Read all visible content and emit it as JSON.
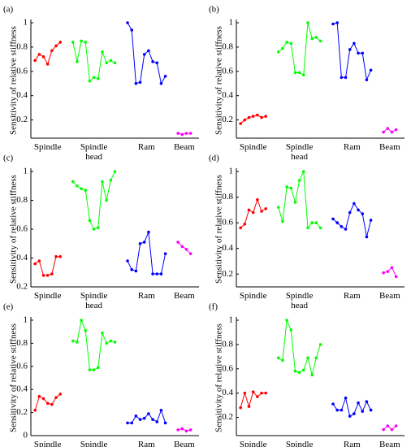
{
  "chart_data": [
    {
      "type": "line",
      "panel": "(a)",
      "ylabel": "Sensitivity of relative stiffness",
      "xlim": [
        0,
        40
      ],
      "ylim": [
        0.05,
        1
      ],
      "yticks": [
        0.2,
        0.4,
        0.6,
        0.8,
        1
      ],
      "series": [
        {
          "name": "Spindle",
          "color": "#ff0000",
          "x": [
            1,
            2,
            3,
            4,
            5,
            6,
            7
          ],
          "values": [
            0.69,
            0.74,
            0.72,
            0.66,
            0.77,
            0.81,
            0.84
          ]
        },
        {
          "name": "Spindle head",
          "color": "#00ff00",
          "x": [
            10,
            11,
            12,
            13,
            14,
            15,
            16,
            17,
            18,
            19,
            20
          ],
          "values": [
            0.84,
            0.68,
            0.85,
            0.84,
            0.52,
            0.55,
            0.54,
            0.76,
            0.67,
            0.69,
            0.67
          ]
        },
        {
          "name": "Ram",
          "color": "#0000ff",
          "x": [
            23,
            24,
            25,
            26,
            27,
            28,
            29,
            30,
            31,
            32
          ],
          "values": [
            1.0,
            0.94,
            0.5,
            0.51,
            0.74,
            0.77,
            0.68,
            0.67,
            0.5,
            0.56
          ]
        },
        {
          "name": "Beam",
          "color": "#ff00ff",
          "x": [
            35,
            36,
            37,
            38
          ],
          "values": [
            0.09,
            0.08,
            0.09,
            0.09
          ]
        }
      ]
    },
    {
      "type": "line",
      "panel": "(b)",
      "ylabel": "Sensitivity of relative stiffness",
      "xlim": [
        0,
        40
      ],
      "ylim": [
        0.05,
        1
      ],
      "yticks": [
        0.2,
        0.4,
        0.6,
        0.8,
        1
      ],
      "series": [
        {
          "name": "Spindle",
          "color": "#ff0000",
          "x": [
            1,
            2,
            3,
            4,
            5,
            6,
            7
          ],
          "values": [
            0.17,
            0.2,
            0.22,
            0.23,
            0.24,
            0.22,
            0.23
          ]
        },
        {
          "name": "Spindle head",
          "color": "#00ff00",
          "x": [
            10,
            11,
            12,
            13,
            14,
            15,
            16,
            17,
            18,
            19,
            20
          ],
          "values": [
            0.76,
            0.79,
            0.84,
            0.83,
            0.59,
            0.59,
            0.57,
            1.0,
            0.87,
            0.88,
            0.85
          ]
        },
        {
          "name": "Ram",
          "color": "#0000ff",
          "x": [
            23,
            24,
            25,
            26,
            27,
            28,
            29,
            30,
            31,
            32
          ],
          "values": [
            0.99,
            1.0,
            0.55,
            0.55,
            0.78,
            0.83,
            0.75,
            0.75,
            0.53,
            0.61
          ]
        },
        {
          "name": "Beam",
          "color": "#ff00ff",
          "x": [
            35,
            36,
            37,
            38
          ],
          "values": [
            0.1,
            0.13,
            0.1,
            0.12
          ]
        }
      ]
    },
    {
      "type": "line",
      "panel": "(c)",
      "ylabel": "Sensitivity of relative stiffness",
      "xlim": [
        0,
        40
      ],
      "ylim": [
        0.2,
        1
      ],
      "yticks": [
        0.2,
        0.4,
        0.6,
        0.8,
        1
      ],
      "series": [
        {
          "name": "Spindle",
          "color": "#ff0000",
          "x": [
            1,
            2,
            3,
            4,
            5,
            6,
            7
          ],
          "values": [
            0.36,
            0.38,
            0.28,
            0.28,
            0.29,
            0.41,
            0.41
          ]
        },
        {
          "name": "Spindle head",
          "color": "#00ff00",
          "x": [
            10,
            11,
            12,
            13,
            14,
            15,
            16,
            17,
            18,
            19,
            20
          ],
          "values": [
            0.93,
            0.9,
            0.88,
            0.87,
            0.66,
            0.6,
            0.61,
            0.93,
            0.8,
            0.94,
            1.0
          ]
        },
        {
          "name": "Ram",
          "color": "#0000ff",
          "x": [
            23,
            24,
            25,
            26,
            27,
            28,
            29,
            30,
            31,
            32
          ],
          "values": [
            0.38,
            0.32,
            0.31,
            0.5,
            0.51,
            0.58,
            0.29,
            0.29,
            0.29,
            0.43
          ]
        },
        {
          "name": "Beam",
          "color": "#ff00ff",
          "x": [
            35,
            36,
            37,
            38
          ],
          "values": [
            0.51,
            0.48,
            0.46,
            0.43
          ]
        }
      ]
    },
    {
      "type": "line",
      "panel": "(d)",
      "ylabel": "Sensitivity of relative stiffness",
      "xlim": [
        0,
        40
      ],
      "ylim": [
        0.1,
        1
      ],
      "yticks": [
        0.2,
        0.4,
        0.6,
        0.8,
        1
      ],
      "series": [
        {
          "name": "Spindle",
          "color": "#ff0000",
          "x": [
            1,
            2,
            3,
            4,
            5,
            6,
            7
          ],
          "values": [
            0.56,
            0.59,
            0.7,
            0.68,
            0.78,
            0.69,
            0.71
          ]
        },
        {
          "name": "Spindle head",
          "color": "#00ff00",
          "x": [
            10,
            11,
            12,
            13,
            14,
            15,
            16,
            17,
            18,
            19,
            20
          ],
          "values": [
            0.72,
            0.61,
            0.88,
            0.87,
            0.76,
            0.93,
            1.0,
            0.56,
            0.6,
            0.6,
            0.56
          ]
        },
        {
          "name": "Ram",
          "color": "#0000ff",
          "x": [
            23,
            24,
            25,
            26,
            27,
            28,
            29,
            30,
            31,
            32
          ],
          "values": [
            0.63,
            0.6,
            0.57,
            0.55,
            0.68,
            0.75,
            0.7,
            0.67,
            0.49,
            0.62
          ]
        },
        {
          "name": "Beam",
          "color": "#ff00ff",
          "x": [
            35,
            36,
            37,
            38
          ],
          "values": [
            0.21,
            0.22,
            0.25,
            0.18
          ]
        }
      ]
    },
    {
      "type": "line",
      "panel": "(e)",
      "ylabel": "Sensitivity of relative stiffness",
      "xlim": [
        0,
        40
      ],
      "ylim": [
        0,
        1
      ],
      "yticks": [
        0,
        0.2,
        0.4,
        0.6,
        0.8,
        1
      ],
      "series": [
        {
          "name": "Spindle",
          "color": "#ff0000",
          "x": [
            1,
            2,
            3,
            4,
            5,
            6,
            7
          ],
          "values": [
            0.22,
            0.34,
            0.32,
            0.28,
            0.27,
            0.33,
            0.36
          ]
        },
        {
          "name": "Spindle head",
          "color": "#00ff00",
          "x": [
            10,
            11,
            12,
            13,
            14,
            15,
            16,
            17,
            18,
            19,
            20
          ],
          "values": [
            0.82,
            0.81,
            1.0,
            0.91,
            0.57,
            0.57,
            0.59,
            0.89,
            0.8,
            0.82,
            0.81
          ]
        },
        {
          "name": "Ram",
          "color": "#0000ff",
          "x": [
            23,
            24,
            25,
            26,
            27,
            28,
            29,
            30,
            31,
            32
          ],
          "values": [
            0.11,
            0.11,
            0.17,
            0.14,
            0.15,
            0.19,
            0.14,
            0.12,
            0.22,
            0.11
          ]
        },
        {
          "name": "Beam",
          "color": "#ff00ff",
          "x": [
            35,
            36,
            37,
            38
          ],
          "values": [
            0.05,
            0.06,
            0.04,
            0.05
          ]
        }
      ]
    },
    {
      "type": "line",
      "panel": "(f)",
      "ylabel": "Sensitivity of relative stiffness",
      "xlim": [
        0,
        40
      ],
      "ylim": [
        0.05,
        1
      ],
      "yticks": [
        0.2,
        0.4,
        0.6,
        0.8,
        1
      ],
      "series": [
        {
          "name": "Spindle",
          "color": "#ff0000",
          "x": [
            1,
            2,
            3,
            4,
            5,
            6,
            7
          ],
          "values": [
            0.28,
            0.4,
            0.29,
            0.41,
            0.37,
            0.4,
            0.4
          ]
        },
        {
          "name": "Spindle head",
          "color": "#00ff00",
          "x": [
            10,
            11,
            12,
            13,
            14,
            15,
            16,
            17,
            18,
            19,
            20
          ],
          "values": [
            0.69,
            0.67,
            1.0,
            0.92,
            0.58,
            0.57,
            0.59,
            0.69,
            0.55,
            0.69,
            0.8
          ]
        },
        {
          "name": "Ram",
          "color": "#0000ff",
          "x": [
            23,
            24,
            25,
            26,
            27,
            28,
            29,
            30,
            31,
            32
          ],
          "values": [
            0.31,
            0.26,
            0.26,
            0.36,
            0.21,
            0.23,
            0.32,
            0.25,
            0.33,
            0.26
          ]
        },
        {
          "name": "Beam",
          "color": "#ff00ff",
          "x": [
            35,
            36,
            37,
            38
          ],
          "values": [
            0.1,
            0.13,
            0.1,
            0.13
          ]
        }
      ]
    }
  ]
}
